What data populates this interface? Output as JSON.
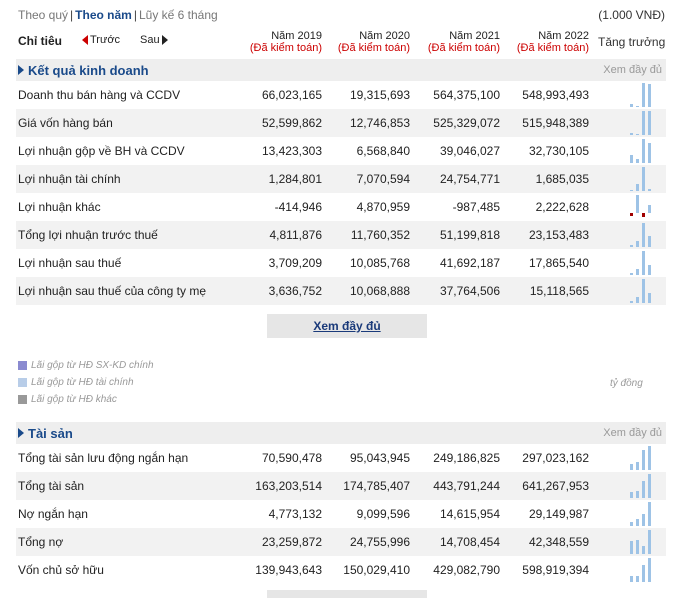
{
  "toolbar": {
    "quarter": "Theo quý",
    "year": "Theo năm",
    "ytd": "Lũy kế 6 tháng",
    "unit": "(1.000 VNĐ)"
  },
  "header": {
    "indicator": "Chỉ tiêu",
    "prev": "Trước",
    "next": "Sau",
    "growth": "Tăng trưởng",
    "years": [
      {
        "year": "Năm 2019",
        "audit": "(Đã kiểm toán)"
      },
      {
        "year": "Năm 2020",
        "audit": "(Đã kiểm toán)"
      },
      {
        "year": "Năm 2021",
        "audit": "(Đã kiểm toán)"
      },
      {
        "year": "Năm 2022",
        "audit": "(Đã kiểm toán)"
      }
    ]
  },
  "colors": {
    "accent": "#1a4a8a",
    "audit": "#cc0000",
    "spark": "#9ec3e6",
    "spark_neg": "#a00000"
  },
  "section1": {
    "title": "Kết quả kinh doanh",
    "more": "Xem đầy đủ",
    "rows": [
      {
        "label": "Doanh thu bán hàng và CCDV",
        "v": [
          "66,023,165",
          "19,315,693",
          "564,375,100",
          "548,993,493"
        ],
        "n": [
          66023165,
          19315693,
          564375100,
          548993493
        ]
      },
      {
        "label": "Giá vốn hàng bán",
        "v": [
          "52,599,862",
          "12,746,853",
          "525,329,072",
          "515,948,389"
        ],
        "n": [
          52599862,
          12746853,
          525329072,
          515948389
        ]
      },
      {
        "label": "Lợi nhuận gộp về BH và CCDV",
        "v": [
          "13,423,303",
          "6,568,840",
          "39,046,027",
          "32,730,105"
        ],
        "n": [
          13423303,
          6568840,
          39046027,
          32730105
        ]
      },
      {
        "label": "Lợi nhuận tài chính",
        "v": [
          "1,284,801",
          "7,070,594",
          "24,754,771",
          "1,685,035"
        ],
        "n": [
          1284801,
          7070594,
          24754771,
          1685035
        ]
      },
      {
        "label": "Lợi nhuận khác",
        "v": [
          "-414,946",
          "4,870,959",
          "-987,485",
          "2,222,628"
        ],
        "n": [
          -414946,
          4870959,
          -987485,
          2222628
        ]
      },
      {
        "label": "Tổng lợi nhuận trước thuế",
        "v": [
          "4,811,876",
          "11,760,352",
          "51,199,818",
          "23,153,483"
        ],
        "n": [
          4811876,
          11760352,
          51199818,
          23153483
        ]
      },
      {
        "label": "Lợi nhuận sau thuế",
        "v": [
          "3,709,209",
          "10,085,768",
          "41,692,187",
          "17,865,540"
        ],
        "n": [
          3709209,
          10085768,
          41692187,
          17865540
        ]
      },
      {
        "label": "Lợi nhuận sau thuế của công ty mẹ",
        "v": [
          "3,636,752",
          "10,068,888",
          "37,764,506",
          "15,118,565"
        ],
        "n": [
          3636752,
          10068888,
          37764506,
          15118565
        ]
      }
    ]
  },
  "more_button": "Xem đầy đủ",
  "legend": {
    "items": [
      {
        "label": "Lãi gộp từ HĐ SX-KD chính",
        "color": "#8a8ad0"
      },
      {
        "label": "Lãi gộp từ HĐ tài chính",
        "color": "#b8cde8"
      },
      {
        "label": "Lãi gộp từ HĐ khác",
        "color": "#999999"
      }
    ],
    "unit": "tỷ đồng"
  },
  "section2": {
    "title": "Tài sản",
    "more": "Xem đầy đủ",
    "rows": [
      {
        "label": "Tổng tài sản lưu động ngắn hạn",
        "v": [
          "70,590,478",
          "95,043,945",
          "249,186,825",
          "297,023,162"
        ],
        "n": [
          70590478,
          95043945,
          249186825,
          297023162
        ]
      },
      {
        "label": "Tổng tài sản",
        "v": [
          "163,203,514",
          "174,785,407",
          "443,791,244",
          "641,267,953"
        ],
        "n": [
          163203514,
          174785407,
          443791244,
          641267953
        ]
      },
      {
        "label": "Nợ ngắn hạn",
        "v": [
          "4,773,132",
          "9,099,596",
          "14,615,954",
          "29,149,987"
        ],
        "n": [
          4773132,
          9099596,
          14615954,
          29149987
        ]
      },
      {
        "label": "Tổng nợ",
        "v": [
          "23,259,872",
          "24,755,996",
          "14,708,454",
          "42,348,559"
        ],
        "n": [
          23259872,
          24755996,
          14708454,
          42348559
        ]
      },
      {
        "label": "Vốn chủ sở hữu",
        "v": [
          "139,943,643",
          "150,029,410",
          "429,082,790",
          "598,919,394"
        ],
        "n": [
          139943643,
          150029410,
          429082790,
          598919394
        ]
      }
    ]
  }
}
